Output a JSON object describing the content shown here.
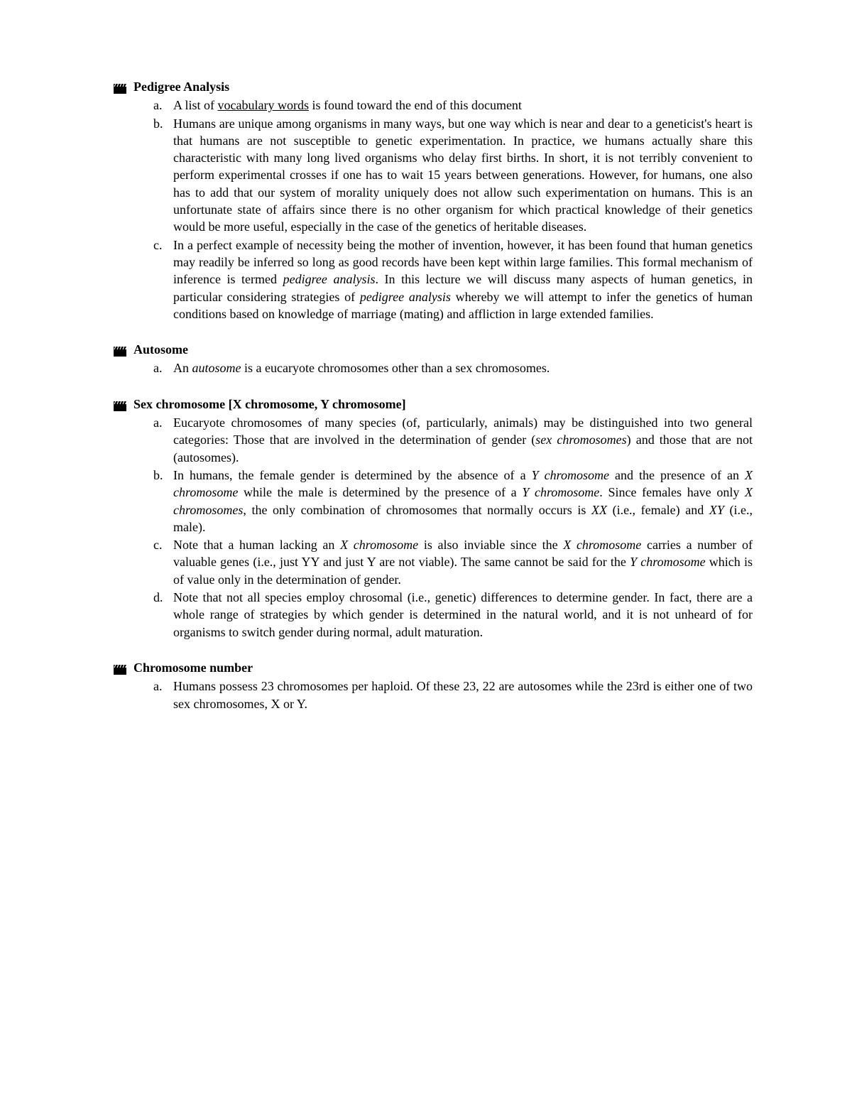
{
  "text_color": "#000000",
  "background_color": "#ffffff",
  "font_family": "Times New Roman",
  "base_font_size_pt": 13,
  "sections": [
    {
      "title": "Pedigree Analysis",
      "items": [
        {
          "marker": "a.",
          "html": "A list of <span class='underline'>vocabulary words</span> is found toward the end of this document"
        },
        {
          "marker": "b.",
          "html": "Humans are unique among organisms in many ways, but one way which is near and dear to a geneticist's heart is that humans are not susceptible to genetic experimentation. In practice, we humans actually share this characteristic with many long lived organisms who delay first births. In short, it is not terribly convenient to perform experimental crosses if one has to wait 15 years between generations. However, for humans, one also has to add that our system of morality uniquely does not allow such experimentation on humans. This is an unfortunate state of affairs since there is no other organism for which practical knowledge of their genetics would be more useful, especially in the case of the genetics of heritable diseases."
        },
        {
          "marker": "c.",
          "html": "In a perfect example of necessity being the mother of invention, however, it has been found that human genetics may readily be inferred so long as good records have been kept within large families. This formal mechanism of inference is termed <span class='italic'>pedigree analysis</span>. In this lecture we will discuss many aspects of human genetics, in particular considering strategies of <span class='italic'>pedigree analysis</span> whereby we will attempt to infer the genetics of human conditions based on knowledge of marriage (mating) and affliction in large extended families."
        }
      ]
    },
    {
      "title": "Autosome",
      "items": [
        {
          "marker": "a.",
          "html": "An <span class='italic'>autosome</span> is a eucaryote chromosomes other than a sex chromosomes."
        }
      ]
    },
    {
      "title": "Sex chromosome [X chromosome, Y chromosome]",
      "items": [
        {
          "marker": "a.",
          "html": "Eucaryote chromosomes of many species (of, particularly, animals) may be distinguished into two general categories: Those that are involved in the determination of gender (<span class='italic'>sex chromosomes</span>) and those that are not (autosomes)."
        },
        {
          "marker": "b.",
          "html": "In humans, the female gender is determined by the absence of a <span class='italic'>Y chromosome</span> and the presence of an <span class='italic'>X chromosome</span> while the male is determined by the presence of a <span class='italic'>Y chromosome</span>. Since females have only <span class='italic'>X chromosomes</span>, the only combination of chromosomes that normally occurs is <span class='italic'>XX</span> (i.e., female) and <span class='italic'>XY</span> (i.e., male)."
        },
        {
          "marker": "c.",
          "html": "Note that a human lacking an <span class='italic'>X chromosome</span> is also inviable since the <span class='italic'>X chromosome</span> carries a number of valuable genes (i.e., just YY and just Y are not viable). The same cannot be said for the <span class='italic'>Y chromosome</span> which is of value only in the determination of gender."
        },
        {
          "marker": "d.",
          "html": "Note that not all species employ chrosomal (i.e., genetic) differences to determine gender. In fact, there are a whole range of strategies by which gender is determined in the natural world, and it is not unheard of for organisms to switch gender during normal, adult maturation."
        }
      ]
    },
    {
      "title": "Chromosome number",
      "items": [
        {
          "marker": "a.",
          "html": "Humans possess 23 chromosomes per haploid. Of these 23, 22 are autosomes while the 23rd is either one of two sex chromosomes, X or Y."
        }
      ]
    }
  ]
}
